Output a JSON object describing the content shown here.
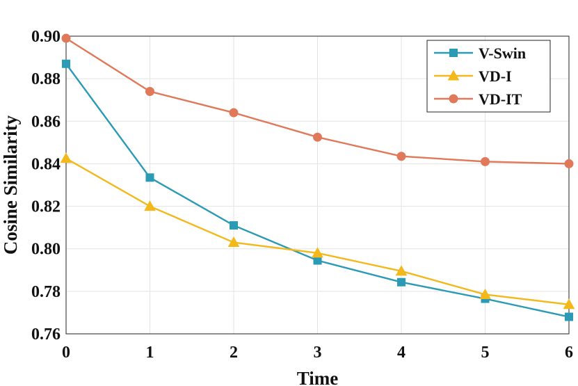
{
  "chart_data": {
    "type": "line",
    "title": "",
    "xlabel": "Time",
    "ylabel": "Cosine Similarity",
    "x": [
      0,
      1,
      2,
      3,
      4,
      5,
      6
    ],
    "xlim": [
      0,
      6
    ],
    "ylim": [
      0.76,
      0.9
    ],
    "xticks": [
      0,
      1,
      2,
      3,
      4,
      5,
      6
    ],
    "yticks": [
      0.76,
      0.78,
      0.8,
      0.82,
      0.84,
      0.86,
      0.88,
      0.9
    ],
    "ytick_labels": [
      "0.76",
      "0.78",
      "0.80",
      "0.82",
      "0.84",
      "0.86",
      "0.88",
      "0.90"
    ],
    "grid": true,
    "legend_position": "top-right",
    "series": [
      {
        "name": "V-Swin",
        "color": "#2b9ab5",
        "marker": "square",
        "values": [
          0.887,
          0.8335,
          0.811,
          0.7945,
          0.7843,
          0.7765,
          0.768
        ]
      },
      {
        "name": "VD-I",
        "color": "#f2b81c",
        "marker": "triangle",
        "values": [
          0.8425,
          0.82,
          0.803,
          0.798,
          0.7895,
          0.7785,
          0.7738
        ]
      },
      {
        "name": "VD-IT",
        "color": "#e0785a",
        "marker": "circle",
        "values": [
          0.899,
          0.874,
          0.864,
          0.8525,
          0.8435,
          0.841,
          0.84
        ]
      }
    ]
  }
}
